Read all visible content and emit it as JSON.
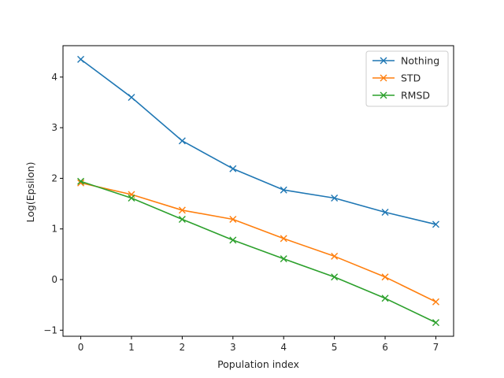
{
  "chart_data": {
    "type": "line",
    "title": "",
    "xlabel": "Population index",
    "ylabel": "Log(Epsilon)",
    "x": [
      0,
      1,
      2,
      3,
      4,
      5,
      6,
      7
    ],
    "xlim": [
      -0.35,
      7.35
    ],
    "ylim": [
      -1.12,
      4.62
    ],
    "xticks": [
      0,
      1,
      2,
      3,
      4,
      5,
      6,
      7
    ],
    "yticks": [
      -1,
      0,
      1,
      2,
      3,
      4
    ],
    "grid": false,
    "legend_position": "top-right",
    "marker": "x",
    "series": [
      {
        "name": "Nothing",
        "color": "#1f77b4",
        "values": [
          4.35,
          3.6,
          2.74,
          2.19,
          1.77,
          1.61,
          1.33,
          1.09
        ]
      },
      {
        "name": "STD",
        "color": "#ff7f0e",
        "values": [
          1.91,
          1.68,
          1.37,
          1.19,
          0.81,
          0.46,
          0.05,
          -0.44
        ]
      },
      {
        "name": "RMSD",
        "color": "#2ca02c",
        "values": [
          1.94,
          1.61,
          1.19,
          0.78,
          0.41,
          0.05,
          -0.37,
          -0.85
        ]
      }
    ]
  }
}
